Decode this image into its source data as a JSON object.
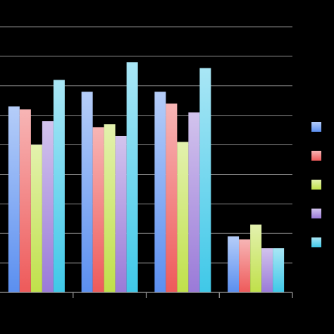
{
  "chart_data": {
    "type": "bar",
    "title": "",
    "xlabel": "",
    "ylabel": "",
    "categories": [
      "",
      "",
      "",
      ""
    ],
    "ylim": [
      0,
      9
    ],
    "grid": true,
    "legend_position": "right",
    "series": [
      {
        "color": "#5b8ff0",
        "values": [
          6.3,
          6.8,
          6.8,
          1.9
        ]
      },
      {
        "color": "#ee5a5a",
        "values": [
          6.2,
          5.6,
          6.4,
          1.8
        ]
      },
      {
        "color": "#c0e04a",
        "values": [
          5.0,
          5.7,
          5.1,
          2.3
        ]
      },
      {
        "color": "#9a7ad8",
        "values": [
          5.8,
          5.3,
          6.1,
          1.5
        ]
      },
      {
        "color": "#3fc8e8",
        "values": [
          7.2,
          7.8,
          7.6,
          1.5
        ]
      }
    ]
  }
}
